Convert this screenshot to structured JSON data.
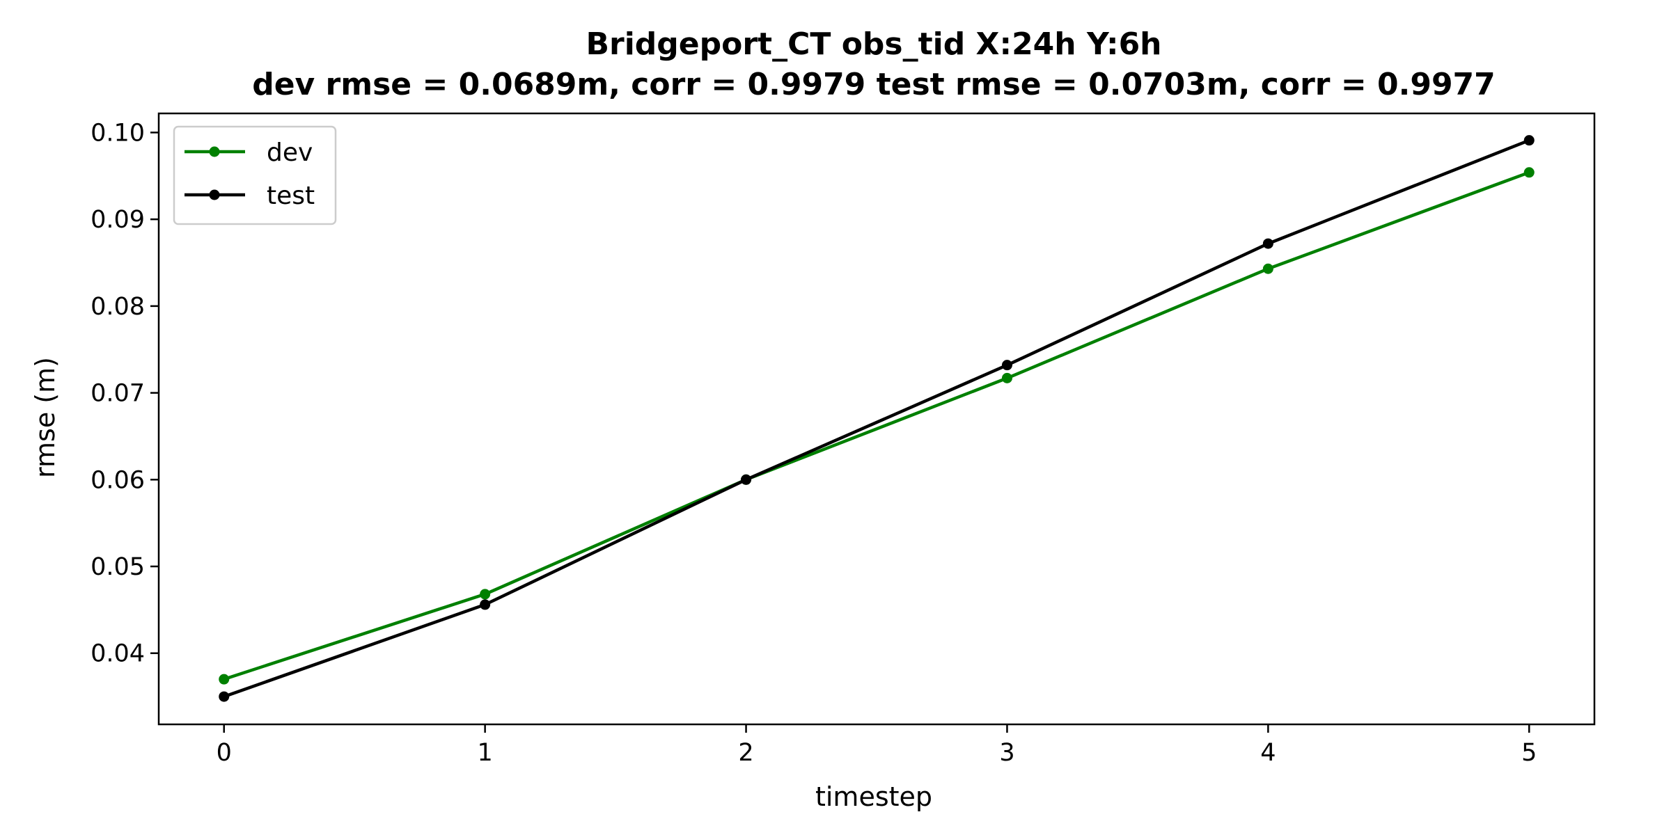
{
  "chart_data": {
    "type": "line",
    "title": "Bridgeport_CT   obs_tid   X:24h   Y:6h",
    "subtitle": "dev rmse = 0.0689m, corr = 0.9979   test rmse = 0.0703m, corr = 0.9977",
    "xlabel": "timestep",
    "ylabel": "rmse (m)",
    "x": [
      0,
      1,
      2,
      3,
      4,
      5
    ],
    "xlim": [
      -0.25,
      5.25
    ],
    "ylim": [
      0.0318,
      0.1022
    ],
    "xticks": [
      0,
      1,
      2,
      3,
      4,
      5
    ],
    "yticks": [
      0.04,
      0.05,
      0.06,
      0.07,
      0.08,
      0.09,
      0.1
    ],
    "ytick_labels": [
      "0.04",
      "0.05",
      "0.06",
      "0.07",
      "0.08",
      "0.09",
      "0.10"
    ],
    "grid": false,
    "legend_position": "upper-left",
    "series": [
      {
        "name": "dev",
        "color": "#008000",
        "values": [
          0.037,
          0.0468,
          0.06,
          0.0717,
          0.0843,
          0.0954
        ]
      },
      {
        "name": "test",
        "color": "#000000",
        "values": [
          0.035,
          0.0456,
          0.06,
          0.0732,
          0.0872,
          0.0991
        ]
      }
    ]
  }
}
